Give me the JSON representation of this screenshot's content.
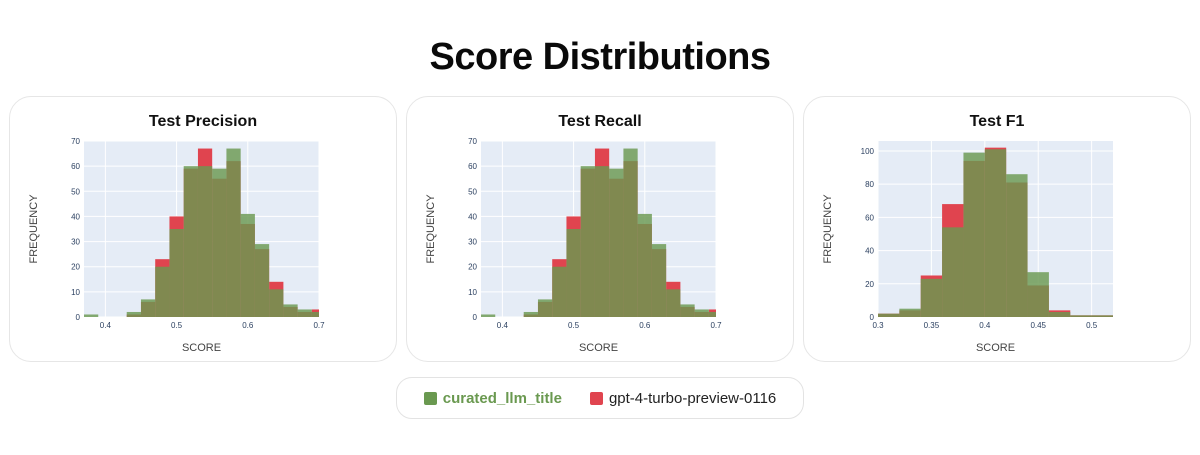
{
  "page": {
    "title": "Score Distributions"
  },
  "colors": {
    "green": "#6a9950",
    "red": "#e0444f",
    "plot_bg": "#e5ecf6",
    "axis_text": "#2a3f5f"
  },
  "legend": {
    "items": [
      {
        "label": "curated_llm_title",
        "color": "#6a9950"
      },
      {
        "label": "gpt-4-turbo-preview-0116",
        "color": "#e0444f"
      }
    ]
  },
  "chart_data": [
    {
      "type": "bar",
      "title": "Test Precision",
      "xlabel": "SCORE",
      "ylabel": "FREQUENCY",
      "xlim": [
        0.37,
        0.7
      ],
      "ylim": [
        0,
        70
      ],
      "xticks": [
        "0.4",
        "0.5",
        "0.6",
        "0.7"
      ],
      "yticks": [
        "0",
        "10",
        "20",
        "30",
        "40",
        "50",
        "60",
        "70"
      ],
      "bin_width": 0.02,
      "series": [
        {
          "name": "curated_llm_title",
          "bins": [
            0.37,
            0.39,
            0.41,
            0.43,
            0.45,
            0.47,
            0.49,
            0.51,
            0.53,
            0.55,
            0.57,
            0.59,
            0.61,
            0.63,
            0.65,
            0.67,
            0.69
          ],
          "values": [
            1,
            0,
            0,
            2,
            7,
            20,
            35,
            60,
            60,
            59,
            67,
            41,
            29,
            11,
            5,
            3,
            2
          ]
        },
        {
          "name": "gpt-4-turbo-preview-0116",
          "bins": [
            0.37,
            0.39,
            0.41,
            0.43,
            0.45,
            0.47,
            0.49,
            0.51,
            0.53,
            0.55,
            0.57,
            0.59,
            0.61,
            0.63,
            0.65,
            0.67,
            0.69
          ],
          "values": [
            0,
            0,
            0,
            1,
            6,
            23,
            40,
            59,
            67,
            55,
            62,
            37,
            27,
            14,
            4,
            2,
            3
          ]
        }
      ]
    },
    {
      "type": "bar",
      "title": "Test Recall",
      "xlabel": "SCORE",
      "ylabel": "FREQUENCY",
      "xlim": [
        0.37,
        0.7
      ],
      "ylim": [
        0,
        70
      ],
      "xticks": [
        "0.4",
        "0.5",
        "0.6",
        "0.7"
      ],
      "yticks": [
        "0",
        "10",
        "20",
        "30",
        "40",
        "50",
        "60",
        "70"
      ],
      "bin_width": 0.02,
      "series": [
        {
          "name": "curated_llm_title",
          "bins": [
            0.37,
            0.39,
            0.41,
            0.43,
            0.45,
            0.47,
            0.49,
            0.51,
            0.53,
            0.55,
            0.57,
            0.59,
            0.61,
            0.63,
            0.65,
            0.67,
            0.69
          ],
          "values": [
            1,
            0,
            0,
            2,
            7,
            20,
            35,
            60,
            60,
            59,
            67,
            41,
            29,
            11,
            5,
            3,
            2
          ]
        },
        {
          "name": "gpt-4-turbo-preview-0116",
          "bins": [
            0.37,
            0.39,
            0.41,
            0.43,
            0.45,
            0.47,
            0.49,
            0.51,
            0.53,
            0.55,
            0.57,
            0.59,
            0.61,
            0.63,
            0.65,
            0.67,
            0.69
          ],
          "values": [
            0,
            0,
            0,
            1,
            6,
            23,
            40,
            59,
            67,
            55,
            62,
            37,
            27,
            14,
            4,
            2,
            3
          ]
        }
      ]
    },
    {
      "type": "bar",
      "title": "Test F1",
      "xlabel": "SCORE",
      "ylabel": "FREQUENCY",
      "xlim": [
        0.3,
        0.52
      ],
      "ylim": [
        0,
        106
      ],
      "xticks": [
        "0.3",
        "0.35",
        "0.4",
        "0.45",
        "0.5"
      ],
      "yticks": [
        "0",
        "20",
        "40",
        "60",
        "80",
        "100"
      ],
      "bin_width": 0.02,
      "series": [
        {
          "name": "curated_llm_title",
          "bins": [
            0.3,
            0.32,
            0.34,
            0.36,
            0.38,
            0.4,
            0.42,
            0.44,
            0.46,
            0.48,
            0.5
          ],
          "values": [
            2,
            5,
            23,
            54,
            99,
            101,
            86,
            27,
            3,
            1,
            1
          ]
        },
        {
          "name": "gpt-4-turbo-preview-0116",
          "bins": [
            0.3,
            0.32,
            0.34,
            0.36,
            0.38,
            0.4,
            0.42,
            0.44,
            0.46,
            0.48,
            0.5
          ],
          "values": [
            2,
            4,
            25,
            68,
            94,
            102,
            81,
            19,
            4,
            1,
            1
          ]
        }
      ]
    }
  ]
}
